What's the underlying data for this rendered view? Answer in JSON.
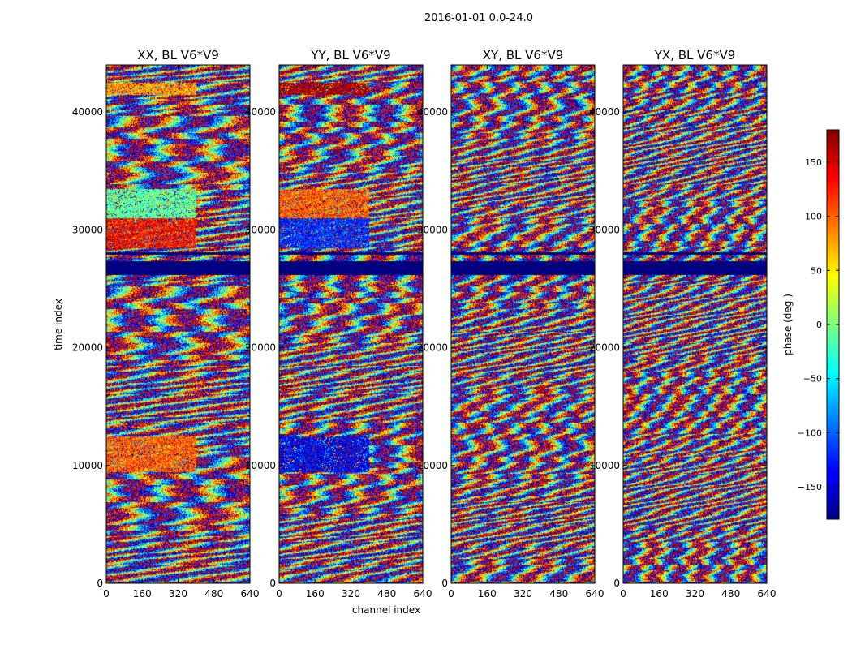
{
  "figure": {
    "suptitle": "2016-01-01 0.0-24.0"
  },
  "chart_data": {
    "type": "heatmap",
    "xlabel": "channel index",
    "ylabel": "time index",
    "xlim": [
      0,
      640
    ],
    "ylim": [
      0,
      44000
    ],
    "x_ticks": [
      0,
      160,
      320,
      480,
      640
    ],
    "y_ticks": [
      0,
      10000,
      20000,
      30000,
      40000
    ],
    "panels": [
      {
        "title": "XX, BL V6*V9",
        "dominant_phase": [
          {
            "y0": 28500,
            "y1": 31000,
            "x1": 400,
            "phase": 130
          },
          {
            "y0": 31000,
            "y1": 33500,
            "x1": 400,
            "phase": -10
          },
          {
            "y0": 9500,
            "y1": 12500,
            "x1": 400,
            "phase": 100
          },
          {
            "y0": 41500,
            "y1": 42500,
            "x1": 400,
            "phase": 80
          }
        ]
      },
      {
        "title": "YY, BL V6*V9",
        "dominant_phase": [
          {
            "y0": 28500,
            "y1": 31000,
            "x1": 400,
            "phase": -120
          },
          {
            "y0": 31000,
            "y1": 33500,
            "x1": 400,
            "phase": 100
          },
          {
            "y0": 9500,
            "y1": 12500,
            "x1": 400,
            "phase": -140
          },
          {
            "y0": 41500,
            "y1": 42500,
            "x1": 400,
            "phase": 170
          }
        ]
      },
      {
        "title": "XY, BL V6*V9",
        "dominant_phase": []
      },
      {
        "title": "YX, BL V6*V9",
        "dominant_phase": []
      }
    ],
    "flagged_time_bands": [
      [
        26200,
        27400
      ],
      [
        27900,
        28100
      ]
    ],
    "colorbar": {
      "label": "phase (deg.)",
      "range": [
        -180,
        180
      ],
      "ticks": [
        -150,
        -100,
        -50,
        0,
        50,
        100,
        150
      ],
      "tick_labels": [
        "−150",
        "−100",
        "−50",
        "0",
        "50",
        "100",
        "150"
      ],
      "colormap": "jet"
    }
  }
}
